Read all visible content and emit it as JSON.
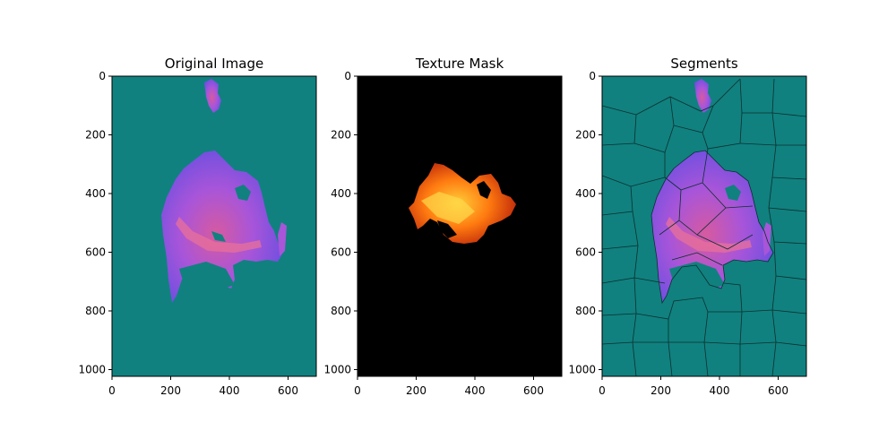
{
  "figure": {
    "background": "#ffffff",
    "panels": [
      {
        "id": "original",
        "title": "Original Image",
        "x_ticks": [
          "0",
          "200",
          "400",
          "600"
        ],
        "y_ticks": [
          "0",
          "200",
          "400",
          "600",
          "800",
          "1000"
        ],
        "background_color": "#10817f",
        "blob_colors": [
          "#6a4fe0",
          "#a855d9",
          "#d65aa0"
        ]
      },
      {
        "id": "texture-mask",
        "title": "Texture Mask",
        "x_ticks": [
          "0",
          "200",
          "400",
          "600"
        ],
        "y_ticks": [
          "0",
          "200",
          "400",
          "600",
          "800",
          "1000"
        ],
        "background_color": "#000000",
        "blob_colors": [
          "#ffcf3a",
          "#ff7a10",
          "#b8200a"
        ]
      },
      {
        "id": "segments",
        "title": "Segments",
        "x_ticks": [
          "0",
          "200",
          "400",
          "600"
        ],
        "y_ticks": [
          "0",
          "200",
          "400",
          "600",
          "800",
          "1000"
        ],
        "background_color": "#10817f",
        "blob_colors": [
          "#6a4fe0",
          "#a855d9",
          "#d65aa0"
        ],
        "boundary_color": "#0b2f2f"
      }
    ]
  }
}
